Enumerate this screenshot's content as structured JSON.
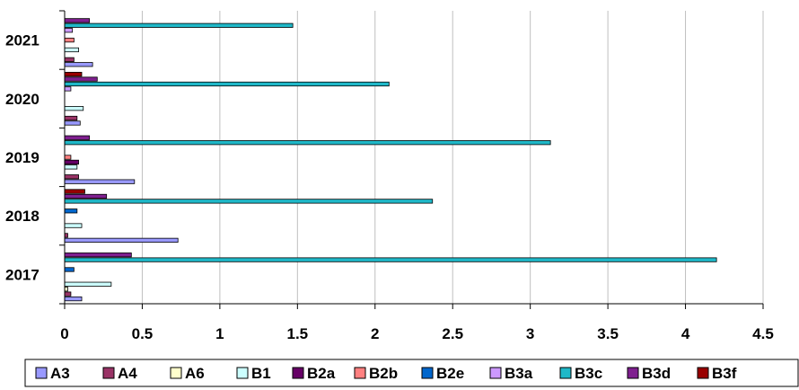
{
  "chart_data": {
    "type": "bar",
    "orientation": "horizontal",
    "title": "",
    "xlabel": "",
    "ylabel": "",
    "categories": [
      "2017",
      "2018",
      "2019",
      "2020",
      "2021"
    ],
    "xlim": [
      0,
      4.5
    ],
    "xticks": [
      0,
      0.5,
      1,
      1.5,
      2,
      2.5,
      3,
      3.5,
      4,
      4.5
    ],
    "xtick_labels": [
      "0",
      "0.5",
      "1",
      "1.5",
      "2",
      "2.5",
      "3",
      "3.5",
      "4",
      "4.5"
    ],
    "grid": "vertical",
    "legend_position": "bottom",
    "series": [
      {
        "name": "A3",
        "color": "#9999ff",
        "values": [
          0.11,
          0.73,
          0.45,
          0.1,
          0.18
        ]
      },
      {
        "name": "A4",
        "color": "#993366",
        "values": [
          0.04,
          0.02,
          0.09,
          0.08,
          0.06
        ]
      },
      {
        "name": "A6",
        "color": "#ffffcc",
        "values": [
          0.02,
          0.0,
          0.0,
          0.0,
          0.0
        ]
      },
      {
        "name": "B1",
        "color": "#ccffff",
        "values": [
          0.3,
          0.11,
          0.08,
          0.12,
          0.09
        ]
      },
      {
        "name": "B2a",
        "color": "#660066",
        "values": [
          0.0,
          0.0,
          0.09,
          0.0,
          0.0
        ]
      },
      {
        "name": "B2b",
        "color": "#ff8080",
        "values": [
          0.0,
          0.0,
          0.04,
          0.0,
          0.06
        ]
      },
      {
        "name": "B2e",
        "color": "#0066cc",
        "values": [
          0.06,
          0.08,
          0.0,
          0.0,
          0.0
        ]
      },
      {
        "name": "B3a",
        "color": "#cc99ff",
        "values": [
          0.0,
          0.0,
          0.0,
          0.04,
          0.05
        ]
      },
      {
        "name": "B3c",
        "color": "#1fb8c8",
        "values": [
          4.2,
          2.37,
          3.13,
          2.09,
          1.47
        ]
      },
      {
        "name": "B3d",
        "color": "#7f1f8f",
        "values": [
          0.43,
          0.27,
          0.16,
          0.21,
          0.16
        ]
      },
      {
        "name": "B3f",
        "color": "#990000",
        "values": [
          0.0,
          0.13,
          0.0,
          0.11,
          0.0
        ]
      }
    ]
  }
}
